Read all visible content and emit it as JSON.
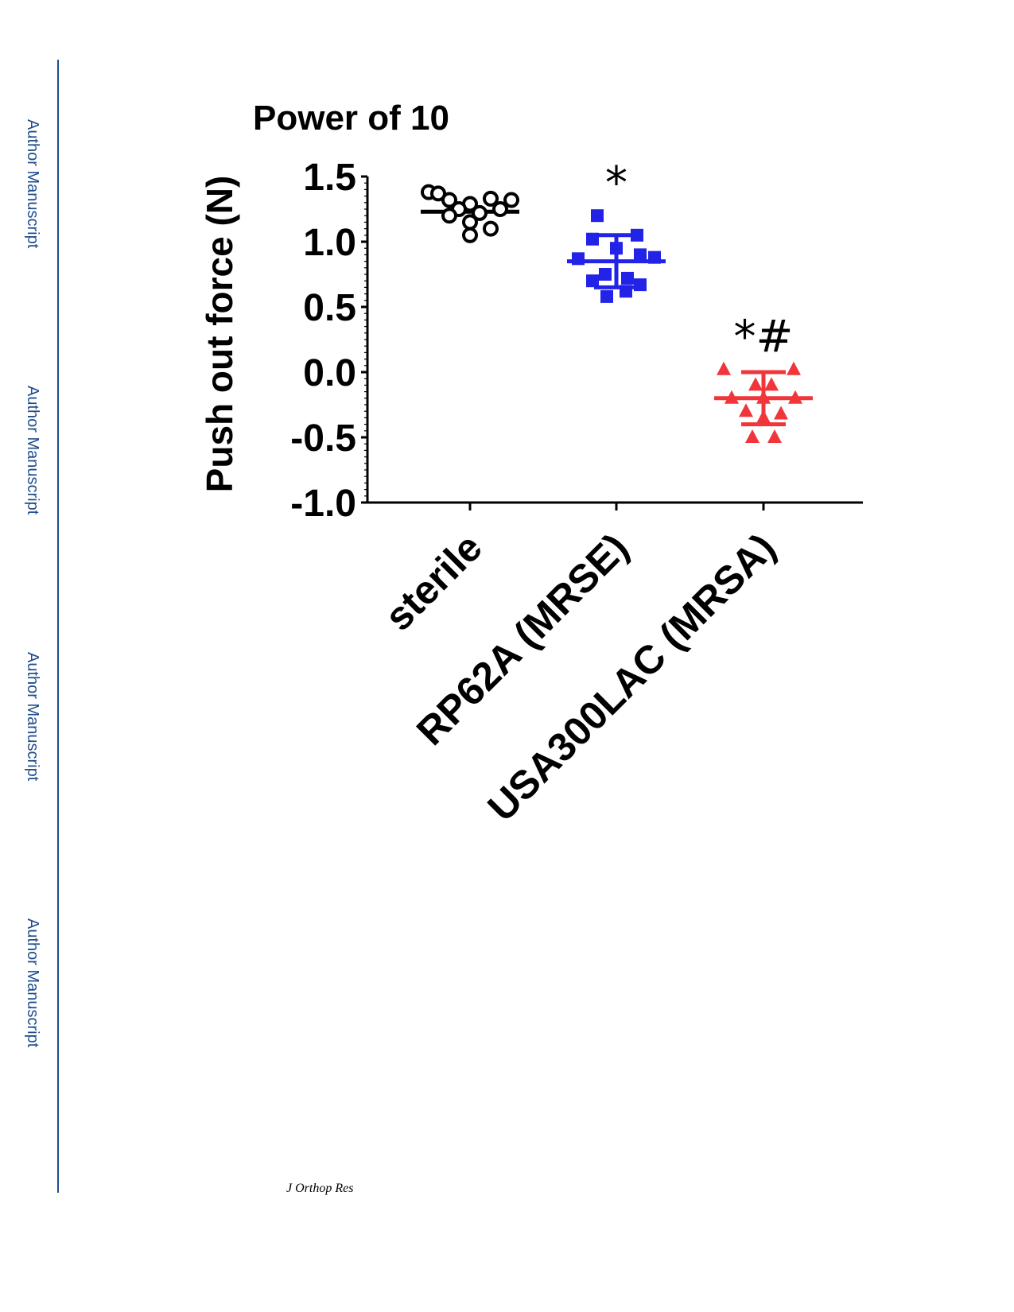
{
  "sidebar": {
    "labels": [
      "Author Manuscript",
      "Author Manuscript",
      "Author Manuscript",
      "Author Manuscript"
    ]
  },
  "footer": {
    "journal": "J Orthop Res"
  },
  "colors": {
    "sterile": "#000000",
    "mrse": "#2323e8",
    "mrsa": "#f0363a",
    "sidebar": "#1f4e8c"
  },
  "chart_data": {
    "type": "scatter",
    "title": "Power of 10",
    "xlabel": "",
    "ylabel": "Push out force (N)",
    "ylim": [
      -1.0,
      1.5
    ],
    "yticks": [
      "1.5",
      "1.0",
      "0.5",
      "0.0",
      "-0.5",
      "-1.0"
    ],
    "ytick_values": [
      1.5,
      1.0,
      0.5,
      0.0,
      -0.5,
      -1.0
    ],
    "categories": [
      "sterile",
      "RP62A (MRSE)",
      "USA300LAC (MRSA)"
    ],
    "series": [
      {
        "category": "sterile",
        "marker": "open-circle",
        "color": "#000000",
        "values": [
          1.38,
          1.32,
          1.29,
          1.33,
          1.32,
          1.37,
          1.25,
          1.22,
          1.25,
          1.2,
          1.15,
          1.1,
          1.05
        ],
        "mean": 1.23,
        "sd_low": 1.23,
        "sd_high": 1.23,
        "annotation": ""
      },
      {
        "category": "RP62A (MRSE)",
        "marker": "filled-square",
        "color": "#2323e8",
        "values": [
          1.2,
          1.05,
          1.02,
          0.95,
          0.9,
          0.87,
          0.88,
          0.75,
          0.72,
          0.7,
          0.67,
          0.62,
          0.58
        ],
        "mean": 0.85,
        "sd_low": 0.65,
        "sd_high": 1.05,
        "annotation": "*"
      },
      {
        "category": "USA300LAC (MRSA)",
        "marker": "filled-triangle",
        "color": "#f0363a",
        "values": [
          0.02,
          0.02,
          -0.1,
          -0.1,
          -0.2,
          -0.2,
          -0.2,
          -0.3,
          -0.32,
          -0.35,
          -0.5,
          -0.5
        ],
        "mean": -0.2,
        "sd_low": -0.4,
        "sd_high": 0.0,
        "annotation": "*#"
      }
    ],
    "grid": false,
    "legend": "none"
  }
}
